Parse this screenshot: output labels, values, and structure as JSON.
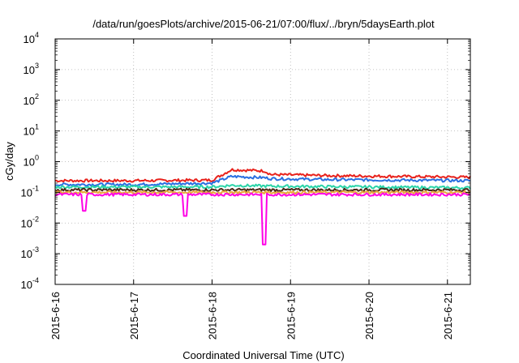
{
  "chart_data": {
    "type": "line",
    "title": "/data/run/goesPlots/archive/2015-06-21/07:00/flux/../bryn/5daysEarth.plot",
    "xlabel": "Coordinated Universal Time (UTC)",
    "ylabel": "cGy/day",
    "y_scale": "log",
    "ylim_exp": [
      -4,
      4
    ],
    "y_ticks": [
      {
        "base": "10",
        "exp": "-4"
      },
      {
        "base": "10",
        "exp": "-3"
      },
      {
        "base": "10",
        "exp": "-2"
      },
      {
        "base": "10",
        "exp": "-1"
      },
      {
        "base": "10",
        "exp": "0"
      },
      {
        "base": "10",
        "exp": "1"
      },
      {
        "base": "10",
        "exp": "2"
      },
      {
        "base": "10",
        "exp": "3"
      },
      {
        "base": "10",
        "exp": "4"
      }
    ],
    "x_ticks": [
      "2015-6-16",
      "2015-6-17",
      "2015-6-18",
      "2015-6-19",
      "2015-6-20",
      "2015-6-21"
    ],
    "xlim": [
      "2015-06-16T00:00",
      "2015-06-21T07:00"
    ],
    "grid": true,
    "series": [
      {
        "color": "#e8221c",
        "keypoints": [
          [
            "2015-06-16T00:00",
            0.24
          ],
          [
            "2015-06-17T00:00",
            0.24
          ],
          [
            "2015-06-18T00:00",
            0.25
          ],
          [
            "2015-06-18T06:00",
            0.55
          ],
          [
            "2015-06-18T16:00",
            0.5
          ],
          [
            "2015-06-18T18:00",
            0.38
          ],
          [
            "2015-06-19T12:00",
            0.35
          ],
          [
            "2015-06-21T07:00",
            0.31
          ]
        ]
      },
      {
        "color": "#2a6fe0",
        "keypoints": [
          [
            "2015-06-16T00:00",
            0.18
          ],
          [
            "2015-06-17T00:00",
            0.18
          ],
          [
            "2015-06-18T00:00",
            0.2
          ],
          [
            "2015-06-18T06:00",
            0.33
          ],
          [
            "2015-06-18T16:00",
            0.3
          ],
          [
            "2015-06-18T18:00",
            0.28
          ],
          [
            "2015-06-19T12:00",
            0.26
          ],
          [
            "2015-06-21T07:00",
            0.24
          ]
        ]
      },
      {
        "color": "#2ad4a8",
        "keypoints": [
          [
            "2015-06-16T00:00",
            0.15
          ],
          [
            "2015-06-17T00:00",
            0.15
          ],
          [
            "2015-06-18T00:00",
            0.15
          ],
          [
            "2015-06-18T06:00",
            0.17
          ],
          [
            "2015-06-18T16:00",
            0.16
          ],
          [
            "2015-06-21T07:00",
            0.14
          ]
        ]
      },
      {
        "color": "#4a2a1a",
        "keypoints": [
          [
            "2015-06-16T00:00",
            0.12
          ],
          [
            "2015-06-17T00:00",
            0.12
          ],
          [
            "2015-06-18T00:00",
            0.12
          ],
          [
            "2015-06-18T16:00",
            0.12
          ],
          [
            "2015-06-21T07:00",
            0.12
          ]
        ]
      },
      {
        "color": "#e8a83c",
        "keypoints": [
          [
            "2015-06-16T00:00",
            0.1
          ],
          [
            "2015-06-17T00:00",
            0.1
          ],
          [
            "2015-06-18T00:00",
            0.1
          ],
          [
            "2015-06-18T16:00",
            0.1
          ],
          [
            "2015-06-21T07:00",
            0.1
          ]
        ]
      },
      {
        "color": "#ff00e6",
        "keypoints": [
          [
            "2015-06-16T00:00",
            0.085
          ],
          [
            "2015-06-17T00:00",
            0.085
          ],
          [
            "2015-06-18T00:00",
            0.085
          ],
          [
            "2015-06-18T16:00",
            0.085
          ],
          [
            "2015-06-21T07:00",
            0.085
          ]
        ],
        "dips": [
          [
            "2015-06-16T09:00",
            0.025
          ],
          [
            "2015-06-17T16:00",
            0.017
          ],
          [
            "2015-06-18T16:00",
            0.002
          ]
        ]
      }
    ]
  }
}
